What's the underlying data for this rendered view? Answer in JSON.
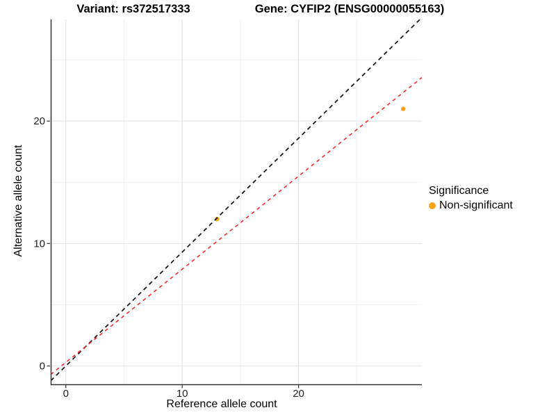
{
  "chart_data": {
    "type": "scatter",
    "title_left": "Variant: rs372517333",
    "title_right": "Gene: CYFIP2 (ENSG00000055163)",
    "xlabel": "Reference allele count",
    "ylabel": "Alternative allele count",
    "xlim": [
      -1.3,
      30.6
    ],
    "ylim": [
      -1.5,
      28.3
    ],
    "x_ticks": [
      0,
      10,
      20
    ],
    "y_ticks": [
      0,
      10,
      20
    ],
    "x_minor_ticks": [
      5,
      15,
      25
    ],
    "y_minor_ticks": [
      5,
      15,
      25
    ],
    "grid": true,
    "points": [
      {
        "x": 13,
        "y": 12,
        "series": "Non-significant"
      },
      {
        "x": 29,
        "y": 21,
        "series": "Non-significant"
      }
    ],
    "lines": [
      {
        "name": "reference-dashed-line",
        "slope": 0.93,
        "intercept": 0,
        "color": "#1a1a1a",
        "dash": "6 5",
        "width": 1.8
      },
      {
        "name": "fit-dashed-line",
        "slope": 0.76,
        "intercept": 0.3,
        "color": "#f8282c",
        "dash": "5 5",
        "width": 1.6
      }
    ],
    "legend": {
      "position": "right",
      "title": "Significance",
      "items": [
        {
          "label": "Non-significant",
          "color": "#fba41b"
        }
      ]
    },
    "colors": {
      "point": "#fba41b",
      "grid_major": "#e4e4e4",
      "grid_minor": "#f1f1f1",
      "axis_line": "#333333",
      "tick_mark": "#333333",
      "tick_label": "#1f1f1f"
    },
    "point_radius": 3.2
  }
}
